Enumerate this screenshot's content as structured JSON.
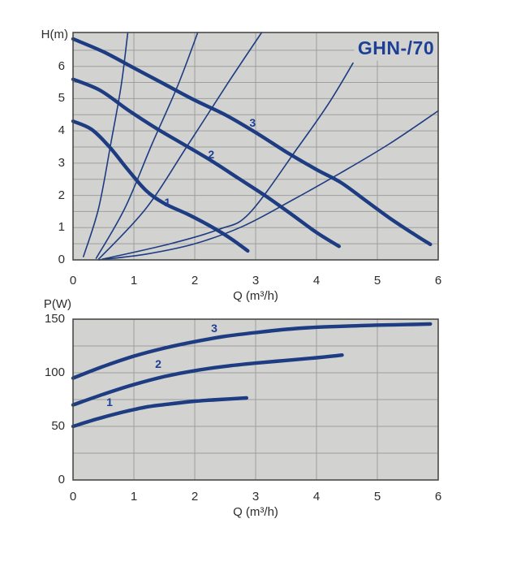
{
  "title": "GHN-/70",
  "colors": {
    "curve_blue": "#1d3c82",
    "label_blue": "#1e3f96",
    "plot_background": "#d2d2d0",
    "gridline": "#9e9e9c",
    "plot_border": "#4a4a48",
    "tick_text": "#2d2d2d"
  },
  "chart_data": [
    {
      "type": "line",
      "name": "head-capacity-chart",
      "title": "GHN-/70",
      "xlabel": "Q (m³/h)",
      "ylabel": "H(m)",
      "xlim": [
        0,
        6
      ],
      "ylim": [
        0,
        7.05
      ],
      "x_ticks": [
        0,
        1,
        2,
        3,
        4,
        5,
        6
      ],
      "y_ticks": [
        0,
        1,
        2,
        3,
        4,
        5,
        6
      ],
      "grid": {
        "x_step": 1,
        "y_step": 0.5,
        "on": true
      },
      "legend": "none",
      "series": [
        {
          "name": "pump-speed-1",
          "label": "1",
          "kind": "pump",
          "points": [
            [
              0,
              4.3
            ],
            [
              0.3,
              4.05
            ],
            [
              0.6,
              3.5
            ],
            [
              0.9,
              2.8
            ],
            [
              1.2,
              2.15
            ],
            [
              1.5,
              1.75
            ],
            [
              1.9,
              1.4
            ],
            [
              2.3,
              1.0
            ],
            [
              2.6,
              0.65
            ],
            [
              2.87,
              0.28
            ]
          ]
        },
        {
          "name": "pump-speed-2",
          "label": "2",
          "kind": "pump",
          "points": [
            [
              0,
              5.6
            ],
            [
              0.45,
              5.25
            ],
            [
              0.9,
              4.65
            ],
            [
              1.35,
              4.1
            ],
            [
              1.8,
              3.6
            ],
            [
              2.25,
              3.1
            ],
            [
              2.7,
              2.55
            ],
            [
              3.15,
              2.0
            ],
            [
              3.6,
              1.4
            ],
            [
              4.0,
              0.85
            ],
            [
              4.37,
              0.42
            ]
          ]
        },
        {
          "name": "pump-speed-3",
          "label": "3",
          "kind": "pump",
          "points": [
            [
              0,
              6.85
            ],
            [
              0.5,
              6.45
            ],
            [
              1.0,
              5.95
            ],
            [
              1.5,
              5.45
            ],
            [
              2.0,
              4.95
            ],
            [
              2.5,
              4.5
            ],
            [
              3.0,
              3.95
            ],
            [
              3.5,
              3.35
            ],
            [
              4.0,
              2.8
            ],
            [
              4.4,
              2.4
            ],
            [
              4.8,
              1.85
            ],
            [
              5.2,
              1.3
            ],
            [
              5.6,
              0.8
            ],
            [
              5.87,
              0.48
            ]
          ]
        },
        {
          "name": "system-curve-a",
          "kind": "system",
          "points": [
            [
              0.17,
              0.1
            ],
            [
              0.42,
              1.6
            ],
            [
              0.62,
              3.6
            ],
            [
              0.79,
              5.4
            ],
            [
              0.9,
              7.05
            ]
          ]
        },
        {
          "name": "system-curve-b",
          "kind": "system",
          "points": [
            [
              0.38,
              0.05
            ],
            [
              0.85,
              1.6
            ],
            [
              1.3,
              3.6
            ],
            [
              1.72,
              5.4
            ],
            [
              2.05,
              7.05
            ]
          ]
        },
        {
          "name": "system-curve-c",
          "kind": "system",
          "points": [
            [
              0.42,
              0.02
            ],
            [
              1.2,
              1.6
            ],
            [
              1.9,
              3.6
            ],
            [
              2.55,
              5.5
            ],
            [
              3.1,
              7.05
            ]
          ]
        },
        {
          "name": "system-curve-d",
          "kind": "system",
          "points": [
            [
              0.48,
              0.02
            ],
            [
              1.6,
              0.5
            ],
            [
              2.4,
              0.95
            ],
            [
              2.9,
              1.45
            ],
            [
              3.7,
              3.5
            ],
            [
              4.2,
              4.85
            ],
            [
              4.6,
              6.1
            ]
          ]
        },
        {
          "name": "system-curve-e",
          "kind": "system",
          "points": [
            [
              0.42,
              0.0
            ],
            [
              1.2,
              0.18
            ],
            [
              2.0,
              0.5
            ],
            [
              2.8,
              1.05
            ],
            [
              3.6,
              1.85
            ],
            [
              4.4,
              2.7
            ],
            [
              5.2,
              3.6
            ],
            [
              6.0,
              4.62
            ]
          ]
        }
      ],
      "curve_labels": [
        {
          "text": "1",
          "x": 1.55,
          "y": 1.78
        },
        {
          "text": "2",
          "x": 2.27,
          "y": 3.28
        },
        {
          "text": "3",
          "x": 2.95,
          "y": 4.25
        }
      ]
    },
    {
      "type": "line",
      "name": "power-chart",
      "title": "",
      "xlabel": "Q (m³/h)",
      "ylabel": "P(W)",
      "xlim": [
        0,
        6
      ],
      "ylim": [
        0,
        150
      ],
      "x_ticks": [
        0,
        1,
        2,
        3,
        4,
        5,
        6
      ],
      "y_ticks": [
        0,
        50,
        100,
        150
      ],
      "grid": {
        "x_step": 1,
        "y_step": 25,
        "on": true
      },
      "legend": "none",
      "series": [
        {
          "name": "power-speed-1",
          "label": "1",
          "kind": "pump",
          "points": [
            [
              0,
              50
            ],
            [
              0.4,
              57
            ],
            [
              0.8,
              63
            ],
            [
              1.2,
              68
            ],
            [
              1.6,
              71
            ],
            [
              2.0,
              73.5
            ],
            [
              2.4,
              75
            ],
            [
              2.85,
              76.5
            ]
          ]
        },
        {
          "name": "power-speed-2",
          "label": "2",
          "kind": "pump",
          "points": [
            [
              0,
              70
            ],
            [
              0.5,
              80
            ],
            [
              1.0,
              89
            ],
            [
              1.5,
              96.5
            ],
            [
              2.0,
              102
            ],
            [
              2.5,
              106
            ],
            [
              3.0,
              109
            ],
            [
              3.5,
              111.5
            ],
            [
              4.0,
              114
            ],
            [
              4.42,
              116.5
            ]
          ]
        },
        {
          "name": "power-speed-3",
          "label": "3",
          "kind": "pump",
          "points": [
            [
              0,
              95
            ],
            [
              0.5,
              106
            ],
            [
              1.0,
              115.5
            ],
            [
              1.5,
              123
            ],
            [
              2.0,
              129
            ],
            [
              2.5,
              134
            ],
            [
              3.0,
              137.5
            ],
            [
              3.5,
              140.5
            ],
            [
              4.0,
              142.5
            ],
            [
              4.5,
              143.5
            ],
            [
              5.0,
              144.5
            ],
            [
              5.5,
              145
            ],
            [
              5.87,
              145.5
            ]
          ]
        }
      ],
      "curve_labels": [
        {
          "text": "1",
          "x": 0.6,
          "y": 73
        },
        {
          "text": "2",
          "x": 1.4,
          "y": 108
        },
        {
          "text": "3",
          "x": 2.32,
          "y": 142
        }
      ]
    }
  ]
}
